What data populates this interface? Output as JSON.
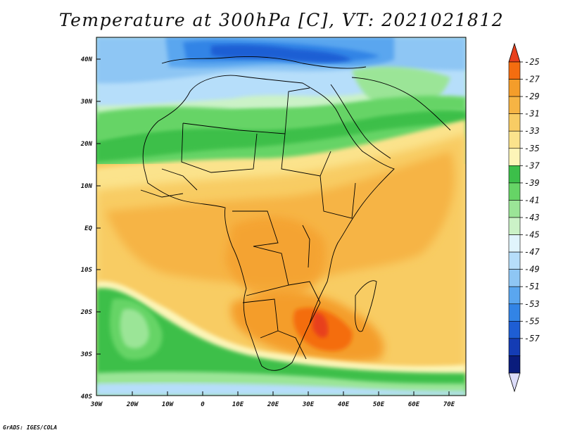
{
  "title": "Temperature at 300hPa [C], VT: 2021021812",
  "credit": "GrADS: IGES/COLA",
  "map": {
    "lat_labels": [
      "40N",
      "30N",
      "20N",
      "10N",
      "EQ",
      "10S",
      "20S",
      "30S",
      "40S"
    ],
    "lon_labels": [
      "30W",
      "20W",
      "10W",
      "0",
      "10E",
      "20E",
      "30E",
      "40E",
      "50E",
      "60E",
      "70E"
    ]
  },
  "colorbar": {
    "labels": [
      "-25",
      "-27",
      "-29",
      "-31",
      "-33",
      "-35",
      "-37",
      "-39",
      "-41",
      "-43",
      "-45",
      "-47",
      "-49",
      "-51",
      "-53",
      "-55",
      "-57"
    ],
    "colors": [
      "#e8401c",
      "#f46d10",
      "#f49d2a",
      "#f6b444",
      "#f8cc64",
      "#fbe38c",
      "#fdf5b8",
      "#3cbf4a",
      "#66d466",
      "#9be597",
      "#cbf2c7",
      "#e0f4fc",
      "#b6defa",
      "#8ec6f4",
      "#5aa6ef",
      "#3284e6",
      "#1e5ed4",
      "#143cb4",
      "#0a1c7c",
      "#dcdcfa"
    ]
  }
}
